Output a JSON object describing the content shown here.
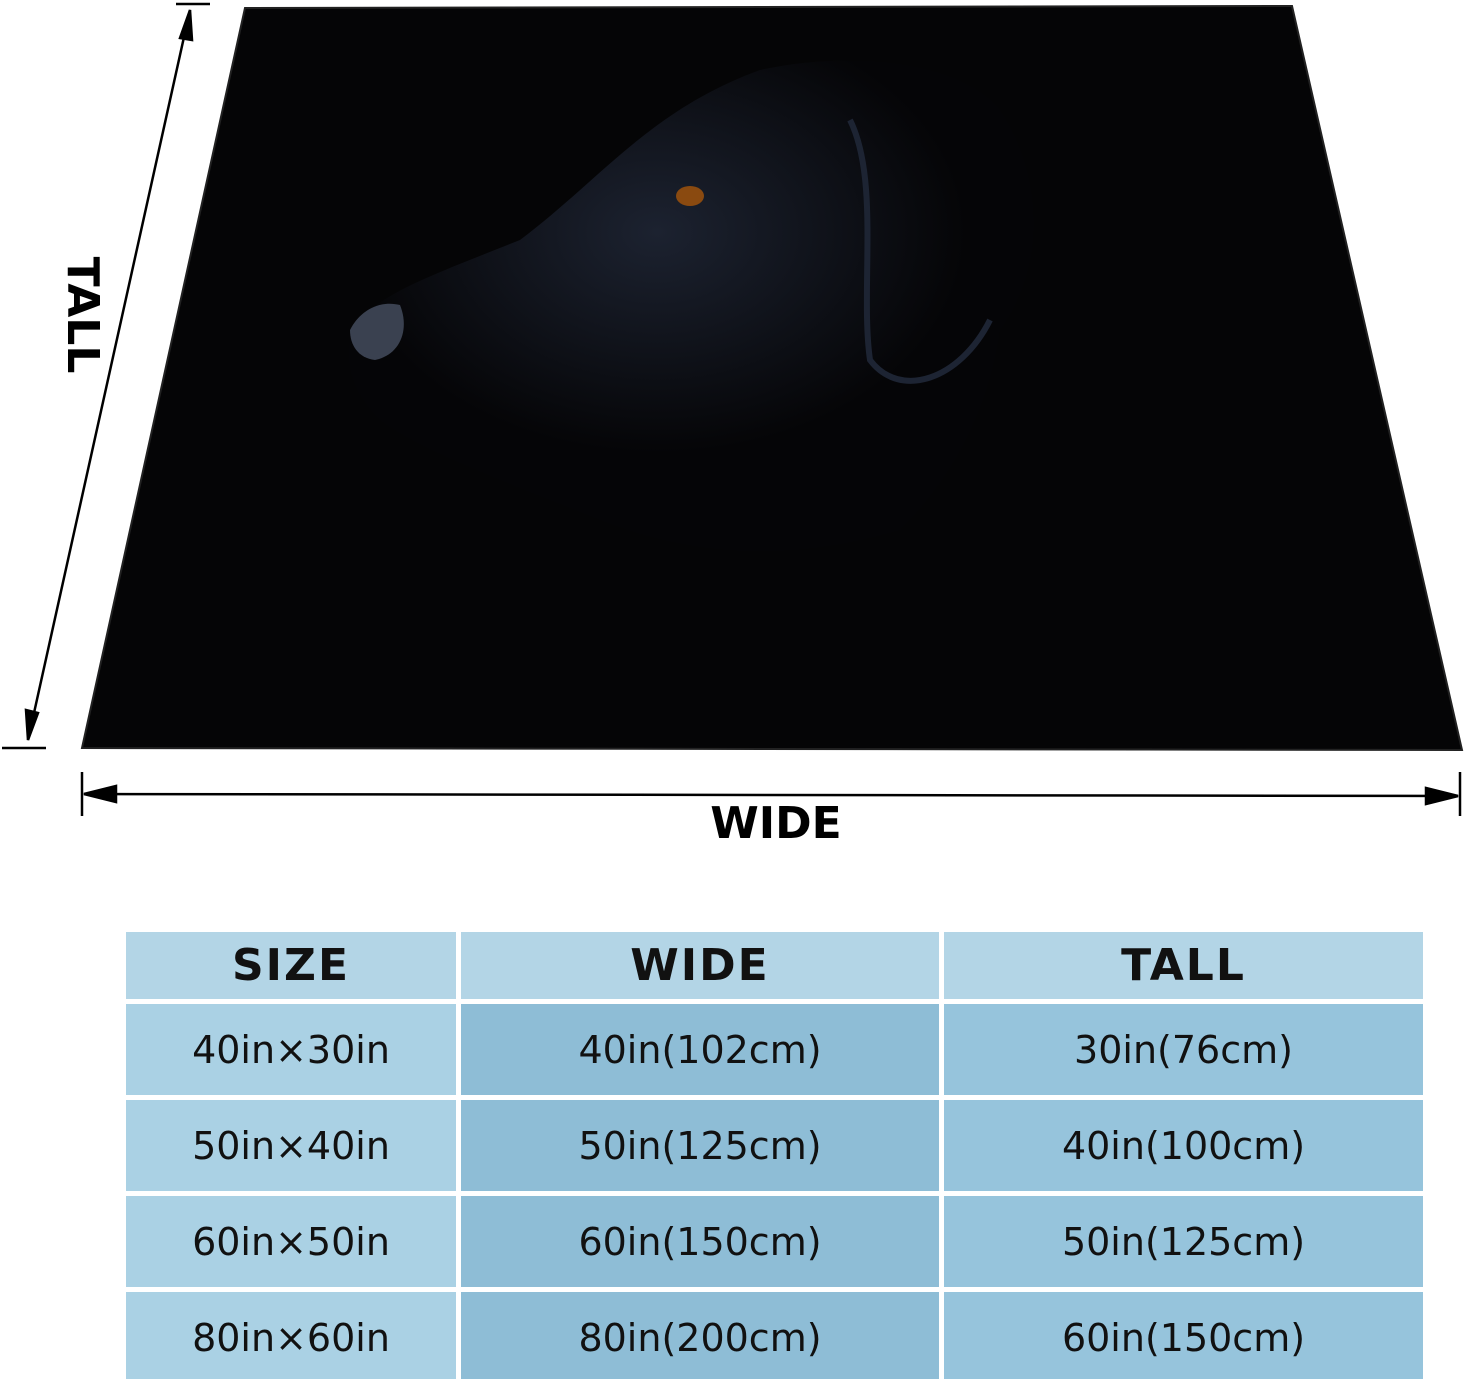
{
  "diagram": {
    "tall_label": "TALL",
    "wide_label": "WIDE"
  },
  "table": {
    "header": [
      "SIZE",
      "WIDE",
      "TALL"
    ],
    "rows": [
      [
        "40in×30in",
        "40in(102cm)",
        "30in(76cm)"
      ],
      [
        "50in×40in",
        "50in(125cm)",
        "40in(100cm)"
      ],
      [
        "60in×50in",
        "60in(150cm)",
        "50in(125cm)"
      ],
      [
        "80in×60in",
        "80in(200cm)",
        "60in(150cm)"
      ]
    ]
  }
}
